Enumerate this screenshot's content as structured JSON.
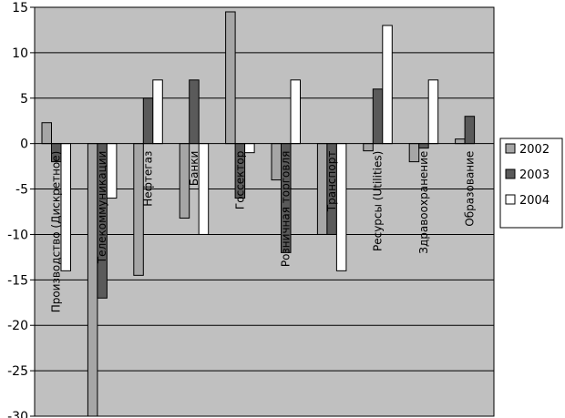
{
  "chart_data": {
    "type": "bar",
    "title": "",
    "xlabel": "",
    "ylabel": "",
    "ylim": [
      -30,
      15
    ],
    "yticks": [
      15,
      10,
      5,
      0,
      -5,
      -10,
      -15,
      -20,
      -25,
      -30
    ],
    "grid": true,
    "legend_position": "right",
    "colors": {
      "plot_bg": "#c0c0c0",
      "border": "#000000"
    },
    "categories": [
      "Производство (Дискретное)",
      "Телекоммуникации",
      "Нефтегаз",
      "Банки",
      "Госсектор",
      "Розничная торговля",
      "Транспорт",
      "Ресурсы (Utilities)",
      "Здравоохранение",
      "Образование"
    ],
    "series": [
      {
        "name": "2002",
        "color": "#a6a6a6",
        "values": [
          2.3,
          -30,
          -14.5,
          -8.2,
          14.5,
          -4,
          -10,
          -0.8,
          -2,
          0.5
        ]
      },
      {
        "name": "2003",
        "color": "#5a5a5a",
        "values": [
          -2,
          -17,
          5,
          7,
          -6,
          -12,
          -10,
          6,
          -0.5,
          3
        ]
      },
      {
        "name": "2004",
        "color": "#ffffff",
        "values": [
          -14,
          -6,
          7,
          -10,
          -1,
          7,
          -14,
          13,
          7,
          0
        ]
      }
    ]
  }
}
